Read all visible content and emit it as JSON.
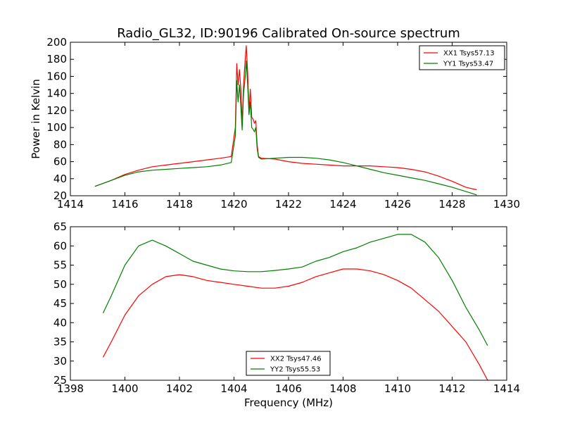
{
  "chart_data": [
    {
      "type": "line",
      "title": "Radio_GL32, ID:90196 Calibrated On-source spectrum",
      "xlabel": "",
      "ylabel": "Power in Kelvin",
      "xlim": [
        1414,
        1430
      ],
      "ylim": [
        20,
        200
      ],
      "xticks": [
        1414,
        1416,
        1418,
        1420,
        1422,
        1424,
        1426,
        1428,
        1430
      ],
      "yticks": [
        20,
        40,
        60,
        80,
        100,
        120,
        140,
        160,
        180,
        200
      ],
      "grid": false,
      "legend_position": "top-right",
      "series": [
        {
          "name": "XX1 Tsys57.13",
          "color": "#ff0000",
          "x": [
            1414.9,
            1415.5,
            1416.0,
            1416.5,
            1417.0,
            1417.5,
            1418.0,
            1418.5,
            1419.0,
            1419.5,
            1419.9,
            1420.05,
            1420.1,
            1420.15,
            1420.2,
            1420.25,
            1420.3,
            1420.35,
            1420.4,
            1420.45,
            1420.5,
            1420.55,
            1420.6,
            1420.65,
            1420.7,
            1420.75,
            1420.8,
            1420.85,
            1420.9,
            1421.0,
            1421.5,
            1422.0,
            1422.5,
            1423.0,
            1423.5,
            1424.0,
            1424.5,
            1425.0,
            1425.5,
            1426.0,
            1426.5,
            1427.0,
            1427.5,
            1428.0,
            1428.5,
            1428.9
          ],
          "y": [
            31,
            38,
            45,
            50,
            54,
            56,
            58,
            60,
            62,
            64,
            66,
            100,
            175,
            150,
            168,
            145,
            105,
            150,
            175,
            196,
            165,
            120,
            145,
            112,
            110,
            105,
            108,
            80,
            66,
            64,
            63,
            60,
            58,
            57,
            56,
            55,
            55,
            55,
            54,
            53,
            51,
            48,
            43,
            37,
            30,
            27
          ]
        },
        {
          "name": "YY1 Tsys53.47",
          "color": "#008000",
          "x": [
            1414.9,
            1415.5,
            1416.0,
            1416.5,
            1417.0,
            1417.5,
            1418.0,
            1418.5,
            1419.0,
            1419.5,
            1419.9,
            1420.05,
            1420.1,
            1420.15,
            1420.2,
            1420.25,
            1420.3,
            1420.35,
            1420.4,
            1420.45,
            1420.5,
            1420.55,
            1420.6,
            1420.65,
            1420.7,
            1420.75,
            1420.8,
            1420.85,
            1420.9,
            1421.0,
            1421.5,
            1422.0,
            1422.5,
            1423.0,
            1423.5,
            1424.0,
            1424.5,
            1425.0,
            1425.5,
            1426.0,
            1426.5,
            1427.0,
            1427.5,
            1428.0,
            1428.5,
            1428.9
          ],
          "y": [
            31,
            38,
            44,
            48,
            50,
            51,
            52,
            53,
            54,
            56,
            59,
            90,
            155,
            130,
            150,
            125,
            97,
            140,
            155,
            178,
            150,
            115,
            130,
            100,
            98,
            95,
            100,
            75,
            65,
            63,
            64,
            65,
            65,
            64,
            62,
            59,
            55,
            51,
            47,
            44,
            41,
            38,
            34,
            30,
            25,
            21
          ]
        }
      ]
    },
    {
      "type": "line",
      "title": "",
      "xlabel": "Frequency (MHz)",
      "ylabel": "",
      "xlim": [
        1398,
        1414
      ],
      "ylim": [
        25,
        65
      ],
      "xticks": [
        1398,
        1400,
        1402,
        1404,
        1406,
        1408,
        1410,
        1412,
        1414
      ],
      "yticks": [
        25,
        30,
        35,
        40,
        45,
        50,
        55,
        60,
        65
      ],
      "grid": false,
      "legend_position": "bottom-center",
      "series": [
        {
          "name": "XX2 Tsys47.46",
          "color": "#ff0000",
          "x": [
            1399.2,
            1399.5,
            1400.0,
            1400.5,
            1401.0,
            1401.5,
            1402.0,
            1402.5,
            1403.0,
            1403.5,
            1404.0,
            1404.5,
            1405.0,
            1405.5,
            1406.0,
            1406.5,
            1407.0,
            1407.5,
            1408.0,
            1408.5,
            1409.0,
            1409.5,
            1410.0,
            1410.5,
            1411.0,
            1411.5,
            1412.0,
            1412.5,
            1413.0,
            1413.3
          ],
          "y": [
            31,
            35,
            42,
            47,
            50,
            52,
            52.5,
            52,
            51,
            50.5,
            50,
            49.5,
            49,
            49,
            49.5,
            50.5,
            52,
            53,
            54,
            54,
            53.5,
            52.5,
            51,
            49,
            46,
            43,
            39,
            35,
            29,
            25
          ]
        },
        {
          "name": "YY2 Tsys55.53",
          "color": "#008000",
          "x": [
            1399.2,
            1399.5,
            1400.0,
            1400.5,
            1401.0,
            1401.5,
            1402.0,
            1402.5,
            1403.0,
            1403.5,
            1404.0,
            1404.5,
            1405.0,
            1405.5,
            1406.0,
            1406.5,
            1407.0,
            1407.5,
            1408.0,
            1408.5,
            1409.0,
            1409.5,
            1410.0,
            1410.5,
            1411.0,
            1411.5,
            1412.0,
            1412.5,
            1413.0,
            1413.3
          ],
          "y": [
            42.5,
            47,
            55,
            60,
            61.5,
            60,
            58,
            56,
            55,
            54,
            53.5,
            53.3,
            53.3,
            53.6,
            54,
            54.5,
            56,
            57,
            58.5,
            59.5,
            61,
            62,
            63,
            63,
            61,
            57,
            51,
            44,
            38,
            34
          ]
        }
      ]
    }
  ]
}
